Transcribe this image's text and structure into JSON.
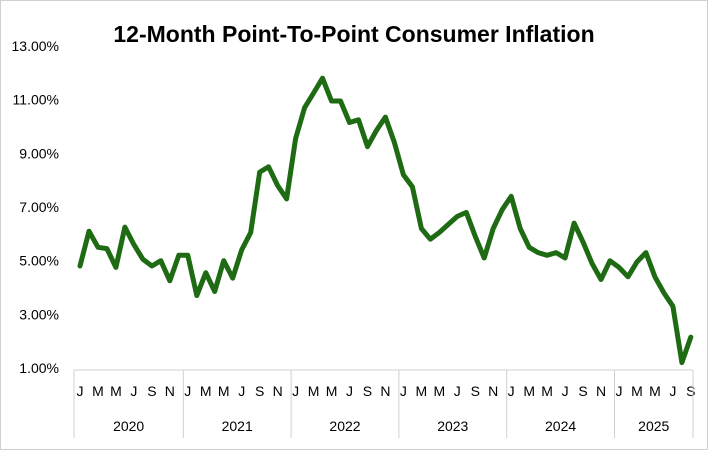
{
  "chart_data": {
    "type": "line",
    "title": "12-Month Point-To-Point Consumer Inflation",
    "ylim": [
      1,
      13
    ],
    "yticks": [
      "1.00%",
      "3.00%",
      "5.00%",
      "7.00%",
      "9.00%",
      "11.00%",
      "13.00%"
    ],
    "month_tick_labels": [
      "J",
      "M",
      "M",
      "J",
      "S",
      "N"
    ],
    "last_year_month_tick_labels": [
      "J",
      "M",
      "M",
      "J",
      "S"
    ],
    "years": [
      "2020",
      "2021",
      "2022",
      "2023",
      "2024",
      "2025"
    ],
    "grid": false,
    "legend": "none",
    "line_color": "#1e6b14",
    "series": [
      {
        "values": [
          4.8,
          6.1,
          5.5,
          5.45,
          4.75,
          6.25,
          5.6,
          5.05,
          4.8,
          5.0,
          4.25,
          5.2,
          5.2,
          3.7,
          4.55,
          3.85,
          5.0,
          4.35,
          5.4,
          6.05,
          8.3,
          8.5,
          7.8,
          7.3,
          9.55,
          10.7,
          11.25,
          11.8,
          10.95,
          10.95,
          10.15,
          10.25,
          9.25,
          9.85,
          10.35,
          9.4,
          8.2,
          7.75,
          6.2,
          5.8,
          6.05,
          6.35,
          6.65,
          6.8,
          5.9,
          5.1,
          6.2,
          6.9,
          7.4,
          6.2,
          5.5,
          5.3,
          5.2,
          5.3,
          5.1,
          6.4,
          5.7,
          4.9,
          4.3,
          5.0,
          4.75,
          4.4,
          4.95,
          5.3,
          4.4,
          3.8,
          3.3,
          1.2,
          2.15
        ]
      }
    ]
  }
}
